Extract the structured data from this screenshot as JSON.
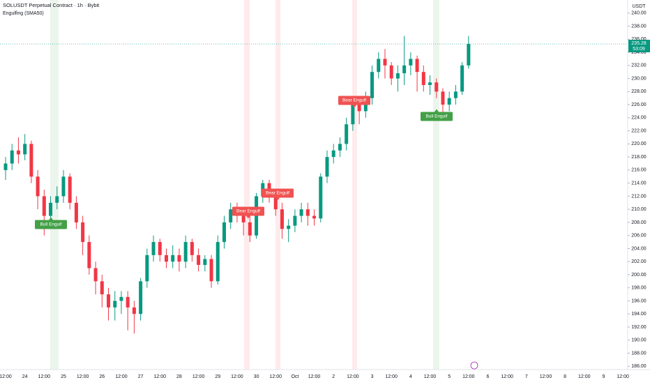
{
  "chart_data": {
    "type": "candlestick",
    "title": "SOLUSDT Perpetual Contract · 1h · Bybit",
    "indicator": "Engulfing (SMA50)",
    "currency": "USDT",
    "countdown": "53:09",
    "up_color": "#089981",
    "down_color": "#f23645",
    "categories": [
      "12:00",
      null,
      null,
      "24",
      null,
      null,
      "12:00",
      null,
      null,
      "25",
      null,
      null,
      "12:00",
      null,
      null,
      "26",
      null,
      null,
      "12:00",
      null,
      null,
      "27",
      null,
      null,
      "12:00",
      null,
      null,
      "28",
      null,
      null,
      "12:00",
      null,
      null,
      "29",
      null,
      null,
      "12:00",
      null,
      null,
      "30",
      null,
      null,
      "12:00",
      null,
      null,
      "Oct",
      null,
      null,
      "12:00",
      null,
      null,
      "2",
      null,
      null,
      "12:00",
      null,
      null,
      "3",
      null,
      null,
      "12:00",
      null,
      null,
      "4",
      null,
      null,
      "12:00",
      null,
      null,
      "5",
      null,
      null,
      "12:00",
      null,
      null,
      "6",
      null,
      null,
      "12:00",
      null,
      null,
      "7",
      null,
      null,
      "12:00",
      null,
      null,
      "8",
      null,
      null,
      "12:00",
      null,
      null,
      "9",
      null,
      null,
      "12:00"
    ],
    "open": [
      216,
      217,
      219,
      218.4,
      220,
      215,
      212,
      209,
      211,
      212,
      215,
      211,
      208,
      205,
      201,
      199,
      197,
      195,
      196,
      196.6,
      195,
      194,
      199,
      203,
      205,
      203,
      202,
      203,
      202,
      205,
      203,
      201.5,
      202.4,
      199,
      205,
      208,
      210,
      209,
      208,
      206,
      212,
      214,
      212,
      210,
      207,
      207.5,
      209,
      210,
      209,
      208.6,
      215,
      218,
      219,
      220,
      223,
      226,
      225,
      227,
      231,
      233,
      232,
      230,
      230.8,
      232,
      233,
      231,
      229,
      229.4,
      228,
      226,
      227,
      228,
      232,
      null,
      null,
      null,
      null,
      null,
      null,
      null,
      null,
      null,
      null,
      null,
      null,
      null,
      null,
      null,
      null,
      null,
      null,
      null,
      null,
      null,
      null,
      null,
      null
    ],
    "high": [
      218,
      220,
      221,
      221.5,
      220.5,
      216,
      213,
      212,
      213.5,
      216,
      215.5,
      212,
      209,
      206,
      202,
      200,
      198,
      197.5,
      197.5,
      197.5,
      196,
      199.5,
      204,
      206,
      205.5,
      204,
      204.5,
      204,
      206,
      205.5,
      204,
      203,
      203,
      206,
      209,
      211,
      211,
      210,
      209,
      212.5,
      214.5,
      214.5,
      213,
      211,
      208.5,
      210,
      211,
      211,
      210,
      215.5,
      219,
      220,
      221,
      224,
      227,
      227,
      228,
      232,
      234,
      234.5,
      232.5,
      232,
      236.5,
      234,
      233.5,
      232,
      230.5,
      230,
      228.5,
      228,
      229,
      232.5,
      236.5,
      null,
      null,
      null,
      null,
      null,
      null,
      null,
      null,
      null,
      null,
      null,
      null,
      null,
      null,
      null,
      null,
      null,
      null,
      null,
      null,
      null,
      null,
      null,
      null
    ],
    "low": [
      214.5,
      216,
      217,
      217.5,
      214,
      210,
      206,
      208,
      210,
      211,
      210,
      207,
      203,
      200,
      197,
      195,
      193,
      193,
      194,
      191.5,
      191,
      193,
      198,
      202,
      202,
      201,
      201,
      200.5,
      201,
      202,
      200.5,
      200.5,
      198,
      198.5,
      204,
      207,
      208,
      206,
      205,
      205.5,
      211,
      211,
      209,
      205.5,
      205,
      206.5,
      208,
      207.5,
      207.5,
      208,
      214,
      217,
      218,
      219,
      222,
      223,
      224,
      226,
      230,
      230,
      229,
      228,
      229,
      230.5,
      228,
      228,
      227.5,
      227,
      224.5,
      225,
      226,
      227.5,
      231.5,
      null,
      null,
      null,
      null,
      null,
      null,
      null,
      null,
      null,
      null,
      null,
      null,
      null,
      null,
      null,
      null,
      null,
      null,
      null,
      null,
      null,
      null,
      null,
      null
    ],
    "close": [
      217,
      219,
      218.4,
      220,
      215,
      212,
      209,
      211,
      212,
      215,
      211,
      208,
      205,
      201,
      199,
      197,
      195,
      196,
      196.6,
      195,
      194,
      199,
      203,
      205,
      203,
      202,
      203,
      202,
      205,
      203,
      201.5,
      202.4,
      199,
      205,
      208,
      210,
      209,
      208,
      206,
      212,
      214,
      212,
      210,
      207,
      207.5,
      209,
      210,
      209,
      208.6,
      215,
      218,
      219,
      220,
      223,
      226,
      225,
      227,
      231,
      233,
      232,
      230,
      230.8,
      232,
      233,
      231,
      229,
      229.4,
      228,
      226,
      227,
      228,
      232,
      235.28,
      null,
      null,
      null,
      null,
      null,
      null,
      null,
      null,
      null,
      null,
      null,
      null,
      null,
      null,
      null,
      null,
      null,
      null,
      null,
      null,
      null,
      null,
      null,
      null
    ],
    "ylim": [
      185.5,
      242
    ],
    "yticks": [
      {
        "value": 186,
        "label": "186.00"
      },
      {
        "value": 188,
        "label": "188.00"
      },
      {
        "value": 190,
        "label": "190.00"
      },
      {
        "value": 192,
        "label": "192.00"
      },
      {
        "value": 194,
        "label": "194.00"
      },
      {
        "value": 196,
        "label": "196.00"
      },
      {
        "value": 198,
        "label": "198.00"
      },
      {
        "value": 200,
        "label": "200.00"
      },
      {
        "value": 202,
        "label": "202.00"
      },
      {
        "value": 204,
        "label": "204.00"
      },
      {
        "value": 206,
        "label": "206.00"
      },
      {
        "value": 208,
        "label": "208.00"
      },
      {
        "value": 210,
        "label": "210.00"
      },
      {
        "value": 212,
        "label": "212.00"
      },
      {
        "value": 214,
        "label": "214.00"
      },
      {
        "value": 216,
        "label": "216.00"
      },
      {
        "value": 218,
        "label": "218.00"
      },
      {
        "value": 220,
        "label": "220.00"
      },
      {
        "value": 222,
        "label": "222.00"
      },
      {
        "value": 224,
        "label": "224.00"
      },
      {
        "value": 226,
        "label": "226.00"
      },
      {
        "value": 228,
        "label": "228.00"
      },
      {
        "value": 230,
        "label": "230.00"
      },
      {
        "value": 232,
        "label": "232.00"
      },
      {
        "value": 234,
        "label": "234.00"
      },
      {
        "value": 236,
        "label": "236.00"
      },
      {
        "value": 238,
        "label": "238.00"
      },
      {
        "value": 240,
        "label": "240.00"
      }
    ],
    "annotations": [
      {
        "text": "Bull Engulf",
        "color": "#43a047"
      },
      {
        "text": "Bear Engulf",
        "color": "#f05252"
      },
      {
        "text": "Bear Engulf",
        "color": "#f05252"
      },
      {
        "text": "Bear Engulf",
        "color": "#f05252"
      },
      {
        "text": "Bull Engulf",
        "color": "#43a047"
      }
    ]
  }
}
